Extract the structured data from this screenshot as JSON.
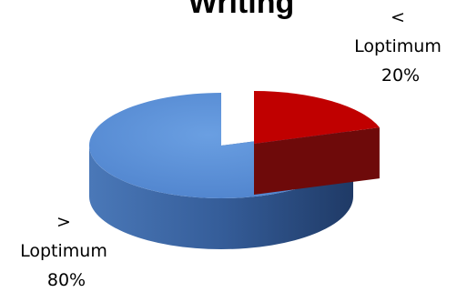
{
  "chart_data": {
    "type": "pie",
    "style": "3d-exploded",
    "title": "Writing",
    "legend": "none",
    "slices": [
      {
        "label": "< Loptimum",
        "value": 20,
        "display_lines": [
          "<",
          "Loptimum",
          "20%"
        ],
        "color": "#c00000",
        "side_color": "#6e0a0a"
      },
      {
        "label": "> Loptimum",
        "value": 80,
        "display_lines": [
          ">",
          "Loptimum",
          "80%"
        ],
        "color": "#5a8fd6",
        "side_color": "#2d4f86"
      }
    ]
  }
}
